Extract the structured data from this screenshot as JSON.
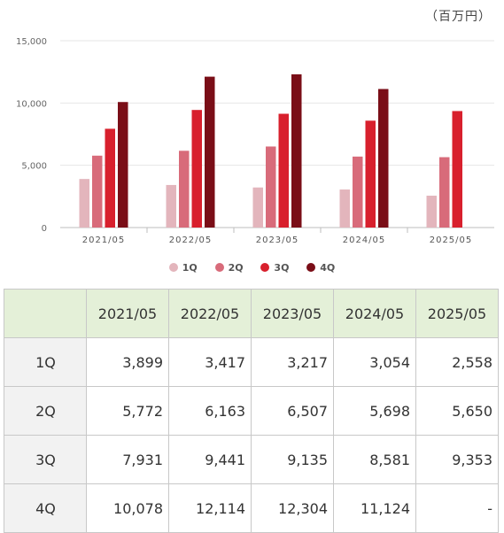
{
  "unit_label": "（百万円）",
  "chart_data": {
    "type": "bar",
    "categories": [
      "2021/05",
      "2022/05",
      "2023/05",
      "2024/05",
      "2025/05"
    ],
    "series": [
      {
        "name": "1Q",
        "color": "#e3b5bc",
        "values": [
          3899,
          3417,
          3217,
          3054,
          2558
        ]
      },
      {
        "name": "2Q",
        "color": "#d86b7a",
        "values": [
          5772,
          6163,
          6507,
          5698,
          5650
        ]
      },
      {
        "name": "3Q",
        "color": "#d8202d",
        "values": [
          7931,
          9441,
          9135,
          8581,
          9353
        ]
      },
      {
        "name": "4Q",
        "color": "#7a0e17",
        "values": [
          10078,
          12114,
          12304,
          11124,
          null
        ]
      }
    ],
    "yticks": [
      "0",
      "5,000",
      "10,000",
      "15,000"
    ],
    "ylim": [
      0,
      15000
    ],
    "grid": true,
    "legend_position": "bottom"
  },
  "table": {
    "headers": [
      "",
      "2021/05",
      "2022/05",
      "2023/05",
      "2024/05",
      "2025/05"
    ],
    "rows": [
      {
        "label": "1Q",
        "cells": [
          "3,899",
          "3,417",
          "3,217",
          "3,054",
          "2,558"
        ]
      },
      {
        "label": "2Q",
        "cells": [
          "5,772",
          "6,163",
          "6,507",
          "5,698",
          "5,650"
        ]
      },
      {
        "label": "3Q",
        "cells": [
          "7,931",
          "9,441",
          "9,135",
          "8,581",
          "9,353"
        ]
      },
      {
        "label": "4Q",
        "cells": [
          "10,078",
          "12,114",
          "12,304",
          "11,124",
          "-"
        ]
      }
    ]
  }
}
